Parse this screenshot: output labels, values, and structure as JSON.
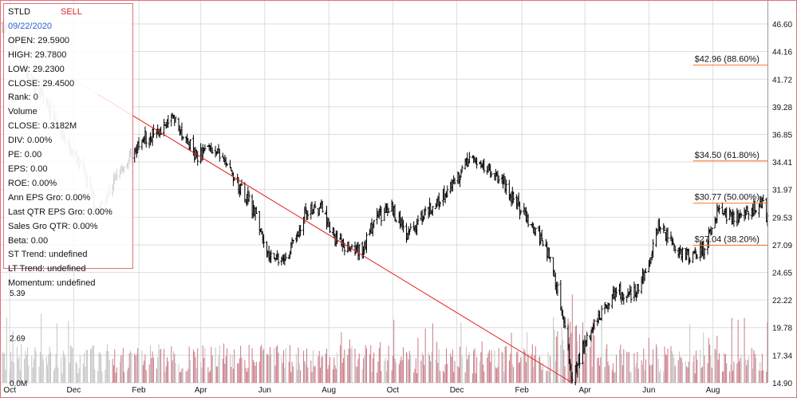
{
  "chart_data": {
    "type": "candlestick",
    "ticker": "STLD",
    "signal": "SELL",
    "colors": {
      "price": "#000000",
      "price_history_gray": "#b9b9b9",
      "volume_up": "#c97b86",
      "volume_gray": "#c4c4c4",
      "trendline": "#e02020",
      "fib_line": "#ff7518",
      "grid": "#dddddd",
      "border": "#e0707a",
      "date_text": "#2e5fd0",
      "signal_text": "#d9232d"
    },
    "info_panel": [
      {
        "label": "Date",
        "value": "09/22/2020"
      },
      {
        "label": "OPEN",
        "value": "29.5900"
      },
      {
        "label": "HIGH",
        "value": "29.7800"
      },
      {
        "label": "LOW",
        "value": "29.2300"
      },
      {
        "label": "CLOSE",
        "value": "29.4500"
      },
      {
        "label": "Rank",
        "value": "0"
      },
      {
        "label": "Volume",
        "value": ""
      },
      {
        "label": "CLOSE",
        "value": "0.3182M"
      },
      {
        "label": "DIV",
        "value": "0.00%"
      },
      {
        "label": "PE",
        "value": "0.00"
      },
      {
        "label": "EPS",
        "value": "0.00"
      },
      {
        "label": "ROE",
        "value": "0.00%"
      },
      {
        "label": "Ann EPS Gro",
        "value": "0.00%"
      },
      {
        "label": "Last QTR EPS Gro",
        "value": "0.00%"
      },
      {
        "label": "Sales Gro QTR",
        "value": "0.00%"
      },
      {
        "label": "Beta",
        "value": "0.00"
      },
      {
        "label": "ST Trend",
        "value": "undefined"
      },
      {
        "label": "LT Trend",
        "value": "undefined"
      },
      {
        "label": "Momentum",
        "value": "undefined"
      }
    ],
    "price_axis_ticks": [
      "46.60",
      "44.16",
      "41.72",
      "39.28",
      "36.85",
      "34.41",
      "31.97",
      "29.53",
      "27.09",
      "24.65",
      "22.22",
      "19.78",
      "17.34",
      "14.90"
    ],
    "price_axis_values": [
      46.6,
      44.16,
      41.72,
      39.28,
      36.85,
      34.41,
      31.97,
      29.53,
      27.09,
      24.65,
      22.22,
      19.78,
      17.34,
      14.9
    ],
    "volume_axis_ticks": [
      "5.39",
      "2.69",
      "0.0M"
    ],
    "volume_axis_values": [
      5.39,
      2.69,
      0.0
    ],
    "ylim_price": [
      14.9,
      46.6
    ],
    "x_axis_labels": [
      "Oct",
      "Dec",
      "Feb",
      "Apr",
      "Jun",
      "Aug",
      "Oct",
      "Dec",
      "Feb",
      "Apr",
      "Jun",
      "Aug"
    ],
    "x_range": [
      "2018-09-24",
      "2020-09-22"
    ],
    "x_label_dates": [
      "2018-10-01",
      "2018-12-01",
      "2019-02-01",
      "2019-04-01",
      "2019-06-01",
      "2019-08-01",
      "2019-10-01",
      "2019-12-01",
      "2020-02-01",
      "2020-04-01",
      "2020-06-01",
      "2020-08-01"
    ],
    "price_path": [
      [
        "2018-09-24",
        46.5
      ],
      [
        "2018-10-10",
        43.5
      ],
      [
        "2018-10-26",
        41.0
      ],
      [
        "2018-11-12",
        38.5
      ],
      [
        "2018-11-25",
        36.0
      ],
      [
        "2018-12-10",
        33.5
      ],
      [
        "2018-12-24",
        30.0
      ],
      [
        "2019-01-05",
        32.0
      ],
      [
        "2019-01-20",
        34.5
      ],
      [
        "2019-02-05",
        36.5
      ],
      [
        "2019-02-20",
        37.2
      ],
      [
        "2019-03-05",
        38.3
      ],
      [
        "2019-03-15",
        36.8
      ],
      [
        "2019-03-28",
        35.0
      ],
      [
        "2019-04-12",
        35.8
      ],
      [
        "2019-04-25",
        34.0
      ],
      [
        "2019-05-10",
        32.0
      ],
      [
        "2019-05-25",
        29.5
      ],
      [
        "2019-06-05",
        26.0
      ],
      [
        "2019-06-15",
        25.6
      ],
      [
        "2019-06-25",
        26.5
      ],
      [
        "2019-07-10",
        29.8
      ],
      [
        "2019-07-25",
        30.5
      ],
      [
        "2019-08-05",
        28.0
      ],
      [
        "2019-08-20",
        26.8
      ],
      [
        "2019-09-01",
        26.5
      ],
      [
        "2019-09-15",
        29.5
      ],
      [
        "2019-10-01",
        30.3
      ],
      [
        "2019-10-15",
        28.0
      ],
      [
        "2019-10-31",
        30.0
      ],
      [
        "2019-11-15",
        31.2
      ],
      [
        "2019-11-30",
        32.5
      ],
      [
        "2019-12-12",
        34.8
      ],
      [
        "2019-12-31",
        34.0
      ],
      [
        "2020-01-15",
        32.5
      ],
      [
        "2020-01-31",
        30.2
      ],
      [
        "2020-02-15",
        28.5
      ],
      [
        "2020-03-01",
        25.5
      ],
      [
        "2020-03-12",
        20.0
      ],
      [
        "2020-03-20",
        15.3
      ],
      [
        "2020-04-01",
        18.5
      ],
      [
        "2020-04-15",
        21.0
      ],
      [
        "2020-05-01",
        23.0
      ],
      [
        "2020-05-15",
        22.5
      ],
      [
        "2020-06-01",
        25.0
      ],
      [
        "2020-06-10",
        29.0
      ],
      [
        "2020-06-25",
        27.0
      ],
      [
        "2020-07-10",
        26.0
      ],
      [
        "2020-07-25",
        27.0
      ],
      [
        "2020-08-05",
        30.0
      ],
      [
        "2020-08-20",
        29.5
      ],
      [
        "2020-09-05",
        29.8
      ],
      [
        "2020-09-15",
        31.2
      ],
      [
        "2020-09-22",
        29.45
      ]
    ],
    "price_history_gray_until": "2019-01-05",
    "volume": {
      "max": 5.39,
      "gray_until": "2019-01-05",
      "typical_level": 1.6
    },
    "trendline": {
      "from": [
        "2018-09-24",
        45.5
      ],
      "to": [
        "2020-03-20",
        14.9
      ],
      "fade_until": "2018-12-24"
    },
    "fibonacci_levels": [
      {
        "label": "$42.96 (88.60%)",
        "value": 42.96
      },
      {
        "label": "$34.50 (61.80%)",
        "value": 34.5
      },
      {
        "label": "$30.77 (50.00%)",
        "value": 30.77
      },
      {
        "label": "$27.04 (38.20%)",
        "value": 27.04
      }
    ],
    "fibonacci_start": "2020-08-01"
  }
}
